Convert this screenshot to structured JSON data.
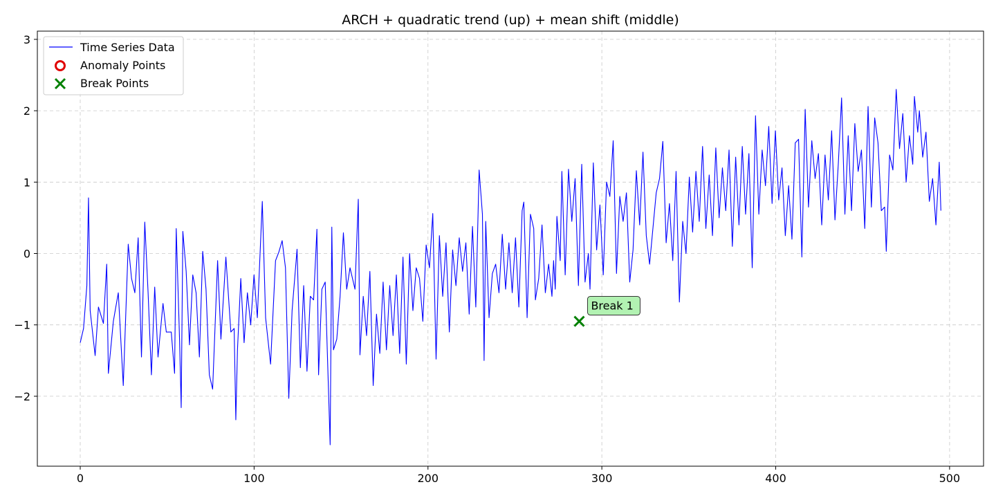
{
  "chart_data": {
    "type": "line",
    "title": "ARCH + quadratic trend (up) + mean shift (middle)",
    "xlabel": "",
    "ylabel": "",
    "xlim": [
      -25,
      520
    ],
    "ylim": [
      -2.9,
      3.1
    ],
    "xticks": [
      0,
      100,
      200,
      300,
      400,
      500
    ],
    "yticks": [
      -2,
      -1,
      0,
      1,
      2,
      3
    ],
    "ytick_labels": [
      "−2",
      "−1",
      "0",
      "1",
      "2",
      "3"
    ],
    "grid": true,
    "legend_position": "top-left",
    "series": [
      {
        "name": "Time Series Data",
        "kind": "line",
        "color": "#0000ff",
        "x_start": 0,
        "x_step": 1,
        "y_anchors": [
          [
            0,
            -1.25
          ],
          [
            2,
            -1.05
          ],
          [
            4,
            -0.45
          ],
          [
            5,
            0.78
          ],
          [
            6,
            -0.8
          ],
          [
            9,
            -1.43
          ],
          [
            11,
            -0.75
          ],
          [
            14,
            -0.98
          ],
          [
            16,
            -0.15
          ],
          [
            17,
            -1.68
          ],
          [
            20,
            -0.95
          ],
          [
            23,
            -0.55
          ],
          [
            26,
            -1.85
          ],
          [
            29,
            0.13
          ],
          [
            31,
            -0.35
          ],
          [
            33,
            -0.55
          ],
          [
            35,
            0.22
          ],
          [
            37,
            -1.45
          ],
          [
            39,
            0.44
          ],
          [
            41,
            -0.55
          ],
          [
            43,
            -1.7
          ],
          [
            45,
            -0.47
          ],
          [
            47,
            -1.45
          ],
          [
            50,
            -0.7
          ],
          [
            52,
            -1.1
          ],
          [
            55,
            -1.1
          ],
          [
            57,
            -1.68
          ],
          [
            58,
            0.35
          ],
          [
            60,
            -1.2
          ],
          [
            61,
            -2.16
          ],
          [
            62,
            0.31
          ],
          [
            64,
            -0.25
          ],
          [
            66,
            -1.28
          ],
          [
            68,
            -0.3
          ],
          [
            70,
            -0.55
          ],
          [
            72,
            -1.45
          ],
          [
            74,
            0.03
          ],
          [
            76,
            -0.5
          ],
          [
            78,
            -1.7
          ],
          [
            80,
            -1.9
          ],
          [
            83,
            -0.1
          ],
          [
            85,
            -1.2
          ],
          [
            88,
            -0.05
          ],
          [
            91,
            -1.1
          ],
          [
            93,
            -1.05
          ],
          [
            94,
            -2.33
          ],
          [
            95,
            -1.35
          ],
          [
            97,
            -0.35
          ],
          [
            99,
            -1.25
          ],
          [
            101,
            -0.55
          ],
          [
            103,
            -1.0
          ],
          [
            105,
            -0.3
          ],
          [
            107,
            -0.9
          ],
          [
            110,
            0.73
          ],
          [
            112,
            -0.9
          ],
          [
            115,
            -1.55
          ],
          [
            118,
            -0.1
          ],
          [
            120,
            0.02
          ],
          [
            122,
            0.18
          ],
          [
            124,
            -0.2
          ],
          [
            126,
            -2.03
          ],
          [
            128,
            -0.8
          ],
          [
            131,
            0.06
          ],
          [
            133,
            -1.6
          ],
          [
            135,
            -0.45
          ],
          [
            137,
            -1.65
          ],
          [
            139,
            -0.6
          ],
          [
            141,
            -0.65
          ],
          [
            143,
            0.34
          ],
          [
            144,
            -1.7
          ],
          [
            146,
            -0.5
          ],
          [
            148,
            -0.4
          ],
          [
            151,
            -2.68
          ],
          [
            152,
            0.37
          ],
          [
            153,
            -1.35
          ],
          [
            155,
            -1.2
          ],
          [
            157,
            -0.6
          ],
          [
            159,
            0.29
          ],
          [
            161,
            -0.5
          ],
          [
            163,
            -0.2
          ],
          [
            166,
            -0.5
          ],
          [
            168,
            0.76
          ],
          [
            169,
            -1.42
          ],
          [
            171,
            -0.6
          ],
          [
            173,
            -1.15
          ],
          [
            175,
            -0.25
          ],
          [
            177,
            -1.85
          ],
          [
            179,
            -0.85
          ],
          [
            181,
            -1.4
          ],
          [
            183,
            -0.4
          ],
          [
            185,
            -1.35
          ],
          [
            187,
            -0.45
          ],
          [
            189,
            -1.15
          ],
          [
            191,
            -0.3
          ],
          [
            193,
            -1.4
          ],
          [
            195,
            -0.05
          ],
          [
            197,
            -1.55
          ],
          [
            199,
            0.0
          ],
          [
            201,
            -0.8
          ],
          [
            203,
            -0.2
          ],
          [
            205,
            -0.35
          ],
          [
            207,
            -0.95
          ],
          [
            209,
            0.12
          ],
          [
            211,
            -0.2
          ],
          [
            213,
            0.56
          ],
          [
            215,
            -1.48
          ],
          [
            217,
            0.25
          ],
          [
            219,
            -0.6
          ],
          [
            221,
            0.15
          ],
          [
            223,
            -1.1
          ],
          [
            225,
            0.05
          ],
          [
            227,
            -0.45
          ],
          [
            229,
            0.22
          ],
          [
            231,
            -0.25
          ],
          [
            233,
            0.15
          ],
          [
            235,
            -0.85
          ],
          [
            237,
            0.38
          ],
          [
            239,
            -0.75
          ],
          [
            241,
            1.17
          ],
          [
            243,
            0.55
          ],
          [
            244,
            -1.5
          ],
          [
            245,
            0.45
          ],
          [
            247,
            -0.9
          ],
          [
            249,
            -0.28
          ],
          [
            251,
            -0.15
          ],
          [
            253,
            -0.55
          ],
          [
            255,
            0.27
          ],
          [
            257,
            -0.5
          ],
          [
            259,
            0.15
          ],
          [
            261,
            -0.55
          ],
          [
            263,
            0.22
          ],
          [
            265,
            -0.75
          ],
          [
            267,
            0.6
          ],
          [
            268,
            0.72
          ],
          [
            270,
            -0.9
          ],
          [
            272,
            0.55
          ],
          [
            274,
            0.35
          ],
          [
            275,
            -0.65
          ],
          [
            277,
            -0.35
          ],
          [
            279,
            0.4
          ],
          [
            281,
            -0.55
          ],
          [
            283,
            -0.15
          ],
          [
            285,
            -0.6
          ],
          [
            286,
            -0.1
          ],
          [
            287,
            -0.5
          ],
          [
            288,
            0.52
          ],
          [
            290,
            -0.1
          ],
          [
            291,
            1.15
          ],
          [
            293,
            -0.3
          ],
          [
            295,
            1.18
          ],
          [
            297,
            0.45
          ],
          [
            299,
            1.05
          ],
          [
            301,
            -0.45
          ],
          [
            303,
            1.25
          ],
          [
            305,
            -0.4
          ],
          [
            307,
            0.0
          ],
          [
            308,
            -0.5
          ],
          [
            310,
            1.27
          ],
          [
            312,
            0.05
          ],
          [
            314,
            0.68
          ],
          [
            316,
            -0.3
          ],
          [
            318,
            1.0
          ],
          [
            320,
            0.8
          ],
          [
            322,
            1.58
          ],
          [
            324,
            -0.28
          ],
          [
            326,
            0.8
          ],
          [
            328,
            0.45
          ],
          [
            330,
            0.85
          ],
          [
            332,
            -0.4
          ],
          [
            334,
            0.05
          ],
          [
            336,
            1.16
          ],
          [
            338,
            0.4
          ],
          [
            340,
            1.42
          ],
          [
            342,
            0.25
          ],
          [
            344,
            -0.15
          ],
          [
            346,
            0.35
          ],
          [
            348,
            0.85
          ],
          [
            350,
            1.05
          ],
          [
            352,
            1.57
          ],
          [
            354,
            0.15
          ],
          [
            356,
            0.7
          ],
          [
            358,
            -0.1
          ],
          [
            360,
            1.15
          ],
          [
            362,
            -0.68
          ],
          [
            364,
            0.45
          ],
          [
            366,
            0.0
          ],
          [
            368,
            1.07
          ],
          [
            370,
            0.3
          ],
          [
            372,
            1.15
          ],
          [
            374,
            0.45
          ],
          [
            376,
            1.5
          ],
          [
            378,
            0.35
          ],
          [
            380,
            1.1
          ],
          [
            382,
            0.25
          ],
          [
            384,
            1.48
          ],
          [
            386,
            0.5
          ],
          [
            388,
            1.2
          ],
          [
            390,
            0.6
          ],
          [
            392,
            1.45
          ],
          [
            394,
            0.1
          ],
          [
            396,
            1.35
          ],
          [
            398,
            0.4
          ],
          [
            400,
            1.5
          ],
          [
            402,
            0.55
          ],
          [
            404,
            1.4
          ],
          [
            406,
            -0.2
          ],
          [
            408,
            1.93
          ],
          [
            410,
            0.55
          ],
          [
            412,
            1.45
          ],
          [
            414,
            0.95
          ],
          [
            416,
            1.78
          ],
          [
            418,
            0.7
          ],
          [
            420,
            1.72
          ],
          [
            422,
            0.75
          ],
          [
            424,
            1.2
          ],
          [
            426,
            0.25
          ],
          [
            428,
            0.95
          ],
          [
            430,
            0.2
          ],
          [
            432,
            1.55
          ],
          [
            434,
            1.6
          ],
          [
            436,
            -0.05
          ],
          [
            438,
            2.02
          ],
          [
            440,
            0.65
          ],
          [
            442,
            1.58
          ],
          [
            444,
            1.05
          ],
          [
            446,
            1.4
          ],
          [
            448,
            0.4
          ],
          [
            450,
            1.38
          ],
          [
            452,
            0.75
          ],
          [
            454,
            1.72
          ],
          [
            456,
            0.47
          ],
          [
            458,
            1.25
          ],
          [
            460,
            2.18
          ],
          [
            462,
            0.55
          ],
          [
            464,
            1.65
          ],
          [
            466,
            0.6
          ],
          [
            468,
            1.82
          ],
          [
            470,
            1.15
          ],
          [
            472,
            1.45
          ],
          [
            474,
            0.35
          ],
          [
            476,
            2.06
          ],
          [
            478,
            0.65
          ],
          [
            480,
            1.9
          ],
          [
            482,
            1.55
          ],
          [
            484,
            0.6
          ],
          [
            486,
            0.65
          ],
          [
            487,
            0.03
          ],
          [
            489,
            1.38
          ],
          [
            491,
            1.17
          ],
          [
            493,
            2.3
          ],
          [
            495,
            1.47
          ],
          [
            497,
            1.96
          ],
          [
            499,
            1.0
          ],
          [
            501,
            1.65
          ],
          [
            503,
            1.25
          ],
          [
            504,
            2.2
          ],
          [
            506,
            1.7
          ],
          [
            507,
            2.0
          ],
          [
            509,
            1.35
          ],
          [
            511,
            1.7
          ],
          [
            513,
            0.73
          ],
          [
            515,
            1.05
          ],
          [
            517,
            0.4
          ],
          [
            519,
            1.28
          ],
          [
            520,
            0.6
          ]
        ]
      },
      {
        "name": "Anomaly Points",
        "kind": "marker",
        "marker": "circle",
        "color": "#e00000",
        "points": []
      },
      {
        "name": "Break Points",
        "kind": "marker",
        "marker": "x",
        "color": "#008000",
        "points": [
          [
            287,
            -0.95
          ]
        ]
      }
    ],
    "annotations": [
      {
        "text": "Break 1",
        "x": 287,
        "y": -0.95,
        "box_color": "#b2f2b2"
      }
    ]
  }
}
